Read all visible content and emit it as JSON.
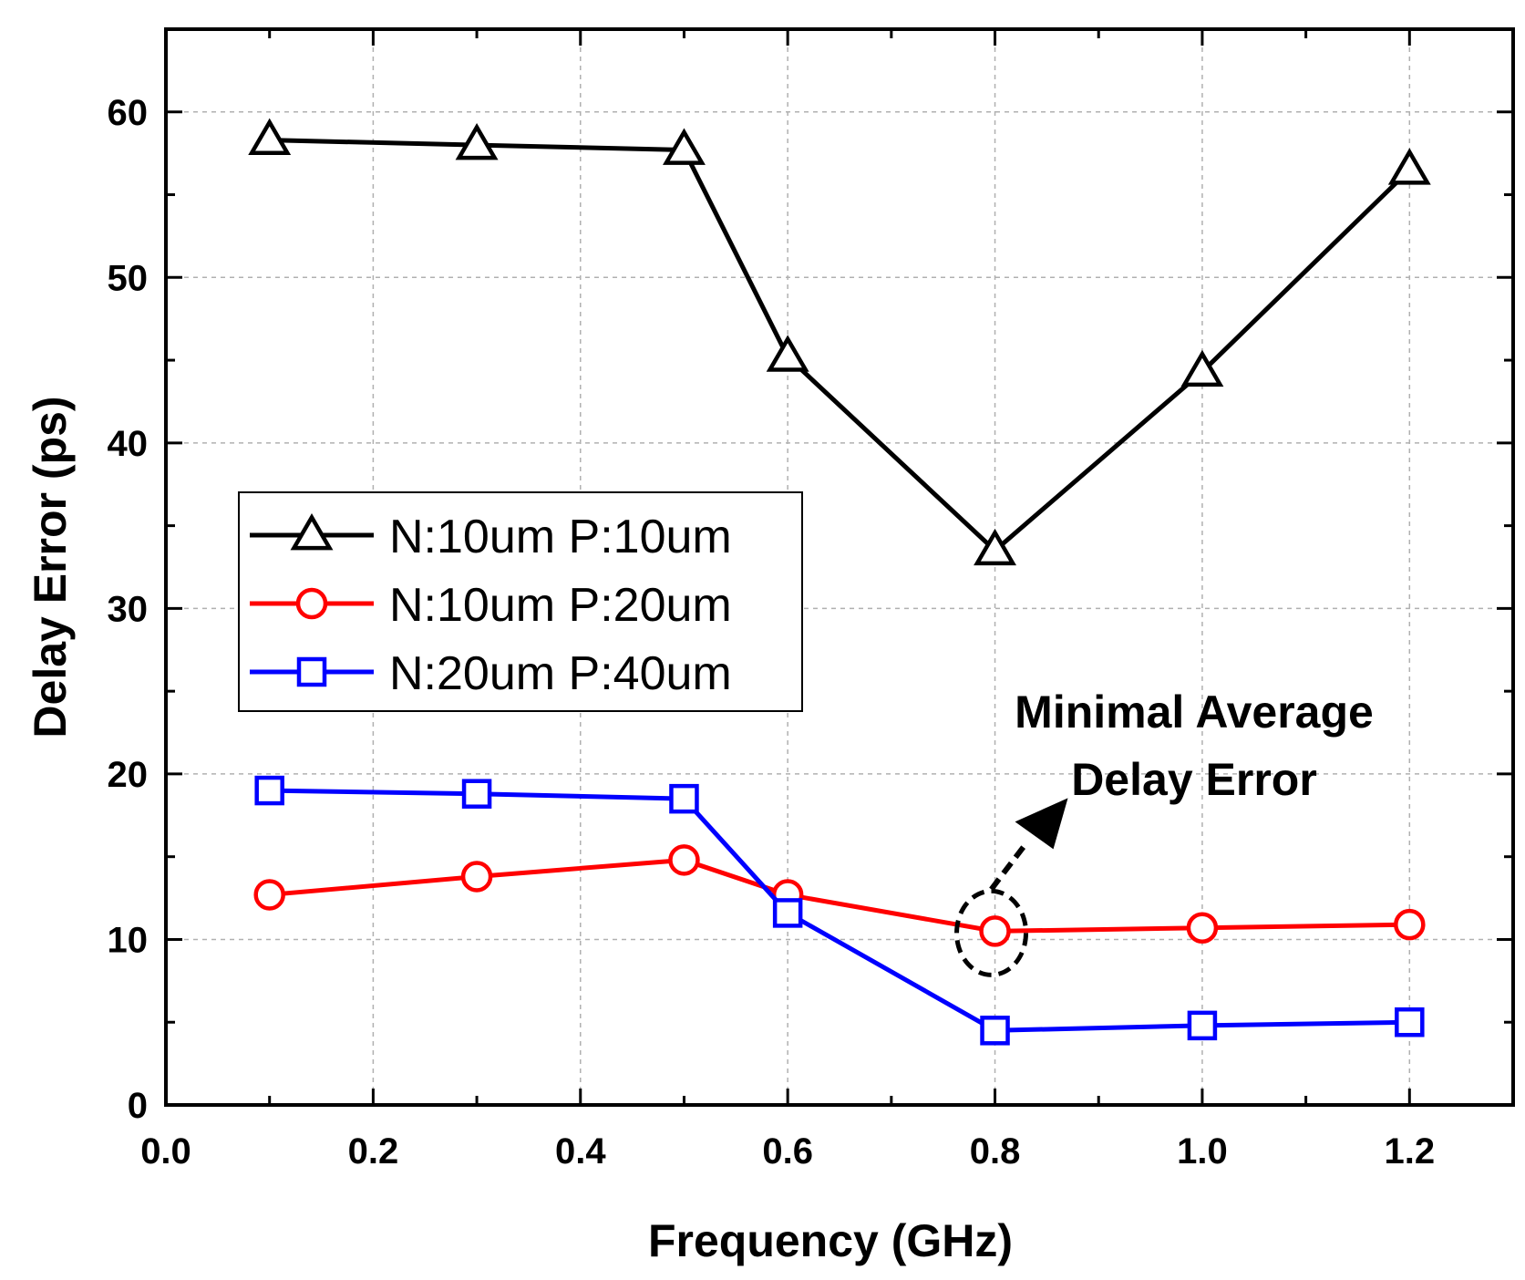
{
  "chart_data": {
    "type": "line",
    "title": "",
    "xlabel": "Frequency (GHz)",
    "ylabel": "Delay Error (ps)",
    "xlim": [
      0.0,
      1.3
    ],
    "ylim": [
      0,
      65
    ],
    "xticks": [
      0.0,
      0.2,
      0.4,
      0.6,
      0.8,
      1.0,
      1.2
    ],
    "xtick_labels": [
      "0.0",
      "0.2",
      "0.4",
      "0.6",
      "0.8",
      "1.0",
      "1.2"
    ],
    "yticks": [
      0,
      10,
      20,
      30,
      40,
      50,
      60
    ],
    "ytick_labels": [
      "0",
      "10",
      "20",
      "30",
      "40",
      "50",
      "60"
    ],
    "grid": true,
    "legend_position": "middle-left",
    "x": [
      0.1,
      0.3,
      0.5,
      0.6,
      0.8,
      1.0,
      1.2
    ],
    "series": [
      {
        "name": "N:10um P:10um",
        "color": "#000000",
        "marker": "triangle",
        "values": [
          58.3,
          58.0,
          57.7,
          45.2,
          33.5,
          44.3,
          56.5
        ]
      },
      {
        "name": "N:10um P:20um",
        "color": "#ff0000",
        "marker": "circle",
        "values": [
          12.7,
          13.8,
          14.8,
          12.7,
          10.5,
          10.7,
          10.9
        ]
      },
      {
        "name": "N:20um P:40um",
        "color": "#0000ff",
        "marker": "square",
        "values": [
          19.0,
          18.8,
          18.5,
          11.6,
          4.5,
          4.8,
          5.0
        ]
      }
    ],
    "annotation": {
      "lines": [
        "Minimal Average",
        "Delay Error"
      ],
      "target_x": 0.8,
      "target_y": 10.5
    }
  }
}
